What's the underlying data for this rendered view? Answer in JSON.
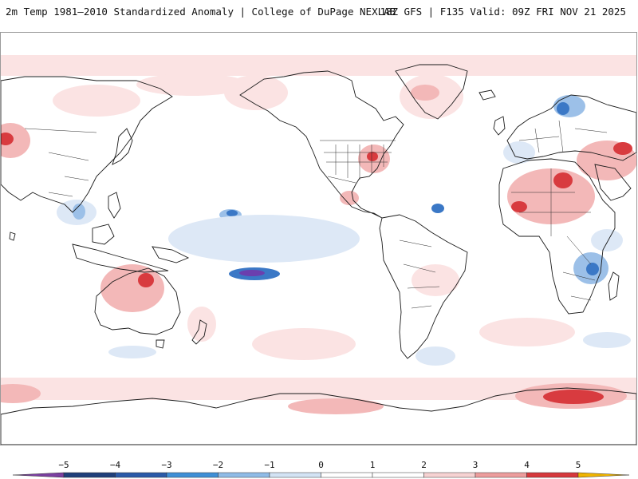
{
  "header": {
    "left_title": "2m Temp 1981–2010 Standardized Anomaly | College of DuPage NEXLAB",
    "right_title": "18Z GFS | F135 Valid: 09Z FRI NOV 21 2025"
  },
  "colorbar": {
    "ticks": [
      "−5",
      "−4",
      "−3",
      "−2",
      "−1",
      "0",
      "1",
      "2",
      "3",
      "4",
      "5"
    ],
    "colors": {
      "below_min": "#7b3fa0",
      "bins": [
        "#1f3f7a",
        "#2a5aa8",
        "#3f8fd6",
        "#8fbbe6",
        "#d3e3f4",
        "#ffffff",
        "#ffffff",
        "#f6d2d2",
        "#ec9c9c",
        "#d6383c",
        "#9a0e18"
      ],
      "above_max": "#f0b400"
    }
  },
  "map": {
    "projection": "Global equirectangular, Pacific centered",
    "palette": {
      "ocean": "#ffffff",
      "coast": "#1a1a1a",
      "border": "#2a2a2a",
      "warm_light": "#fbe3e3",
      "warm_mid": "#f3b8b8",
      "warm_strong": "#d83b3f",
      "warm_extreme": "#9a0e18",
      "cool_light": "#dde8f6",
      "cool_mid": "#9cc0e8",
      "cool_strong": "#3b78c6",
      "cool_extreme": "#6b3fae"
    }
  }
}
